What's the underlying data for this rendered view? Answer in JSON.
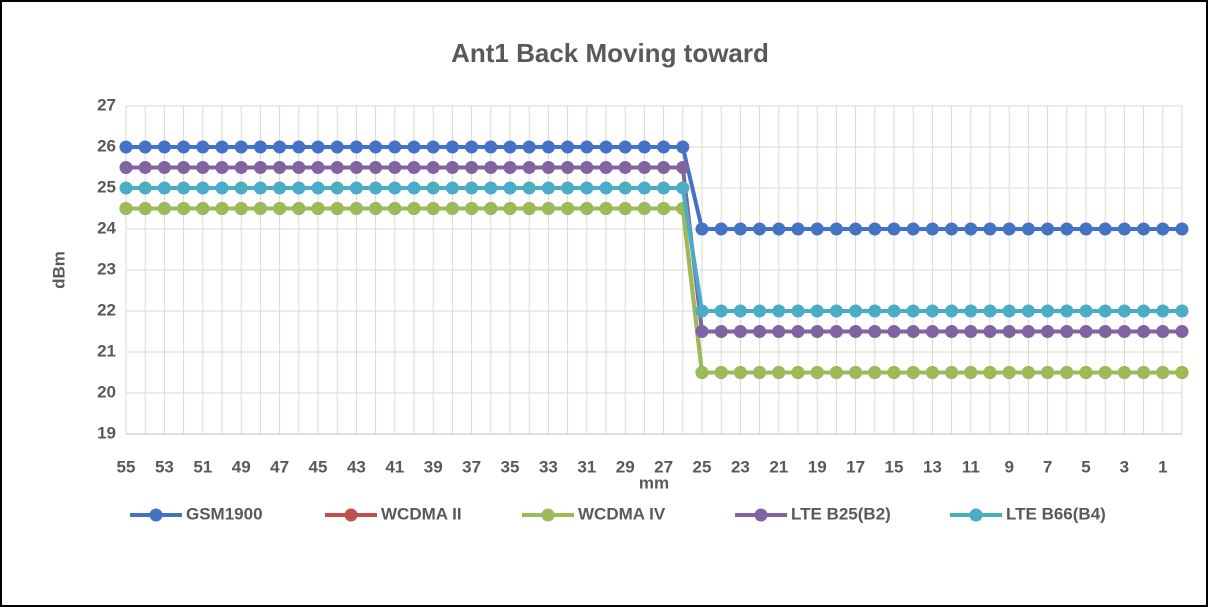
{
  "chart_data": {
    "type": "line",
    "title": "Ant1 Back Moving toward",
    "x_label": "mm",
    "y_label": "dBm",
    "categories": [
      "55",
      null,
      "53",
      null,
      "51",
      null,
      "49",
      null,
      "47",
      null,
      "45",
      null,
      "43",
      null,
      "41",
      null,
      "39",
      null,
      "37",
      null,
      "35",
      null,
      "33",
      null,
      "31",
      null,
      "29",
      null,
      "27",
      null,
      "25",
      null,
      "23",
      null,
      "21",
      null,
      "19",
      null,
      "17",
      null,
      "15",
      null,
      "13",
      null,
      "11",
      null,
      "9",
      null,
      "7",
      null,
      "5",
      null,
      "3",
      null,
      "1",
      null
    ],
    "series": [
      {
        "name": "GSM1900",
        "color": "#4472c4",
        "values": [
          26,
          26,
          26,
          26,
          26,
          26,
          26,
          26,
          26,
          26,
          26,
          26,
          26,
          26,
          26,
          26,
          26,
          26,
          26,
          26,
          26,
          26,
          26,
          26,
          26,
          26,
          26,
          26,
          26,
          26,
          24,
          24,
          24,
          24,
          24,
          24,
          24,
          24,
          24,
          24,
          24,
          24,
          24,
          24,
          24,
          24,
          24,
          24,
          24,
          24,
          24,
          24,
          24,
          24,
          24,
          24
        ]
      },
      {
        "name": "WCDMA II",
        "color": "#c0504d",
        "values": [
          24.5,
          24.5,
          24.5,
          24.5,
          24.5,
          24.5,
          24.5,
          24.5,
          24.5,
          24.5,
          24.5,
          24.5,
          24.5,
          24.5,
          24.5,
          24.5,
          24.5,
          24.5,
          24.5,
          24.5,
          24.5,
          24.5,
          24.5,
          24.5,
          24.5,
          24.5,
          24.5,
          24.5,
          24.5,
          24.5,
          20.5,
          20.5,
          20.5,
          20.5,
          20.5,
          20.5,
          20.5,
          20.5,
          20.5,
          20.5,
          20.5,
          20.5,
          20.5,
          20.5,
          20.5,
          20.5,
          20.5,
          20.5,
          20.5,
          20.5,
          20.5,
          20.5,
          20.5,
          20.5,
          20.5,
          20.5
        ]
      },
      {
        "name": "WCDMA IV",
        "color": "#9bbb59",
        "values": [
          24.5,
          24.5,
          24.5,
          24.5,
          24.5,
          24.5,
          24.5,
          24.5,
          24.5,
          24.5,
          24.5,
          24.5,
          24.5,
          24.5,
          24.5,
          24.5,
          24.5,
          24.5,
          24.5,
          24.5,
          24.5,
          24.5,
          24.5,
          24.5,
          24.5,
          24.5,
          24.5,
          24.5,
          24.5,
          24.5,
          20.5,
          20.5,
          20.5,
          20.5,
          20.5,
          20.5,
          20.5,
          20.5,
          20.5,
          20.5,
          20.5,
          20.5,
          20.5,
          20.5,
          20.5,
          20.5,
          20.5,
          20.5,
          20.5,
          20.5,
          20.5,
          20.5,
          20.5,
          20.5,
          20.5,
          20.5
        ]
      },
      {
        "name": "LTE B25(B2)",
        "color": "#8064a2",
        "values": [
          25.5,
          25.5,
          25.5,
          25.5,
          25.5,
          25.5,
          25.5,
          25.5,
          25.5,
          25.5,
          25.5,
          25.5,
          25.5,
          25.5,
          25.5,
          25.5,
          25.5,
          25.5,
          25.5,
          25.5,
          25.5,
          25.5,
          25.5,
          25.5,
          25.5,
          25.5,
          25.5,
          25.5,
          25.5,
          25.5,
          21.5,
          21.5,
          21.5,
          21.5,
          21.5,
          21.5,
          21.5,
          21.5,
          21.5,
          21.5,
          21.5,
          21.5,
          21.5,
          21.5,
          21.5,
          21.5,
          21.5,
          21.5,
          21.5,
          21.5,
          21.5,
          21.5,
          21.5,
          21.5,
          21.5,
          21.5
        ]
      },
      {
        "name": "LTE B66(B4)",
        "color": "#4bacc6",
        "values": [
          25,
          25,
          25,
          25,
          25,
          25,
          25,
          25,
          25,
          25,
          25,
          25,
          25,
          25,
          25,
          25,
          25,
          25,
          25,
          25,
          25,
          25,
          25,
          25,
          25,
          25,
          25,
          25,
          25,
          25,
          22,
          22,
          22,
          22,
          22,
          22,
          22,
          22,
          22,
          22,
          22,
          22,
          22,
          22,
          22,
          22,
          22,
          22,
          22,
          22,
          22,
          22,
          22,
          22,
          22,
          22
        ]
      }
    ],
    "ylim": [
      19,
      27
    ],
    "yticks": [
      19,
      20,
      21,
      22,
      23,
      24,
      25,
      26,
      27
    ],
    "grid": true,
    "legend": "bottom"
  }
}
